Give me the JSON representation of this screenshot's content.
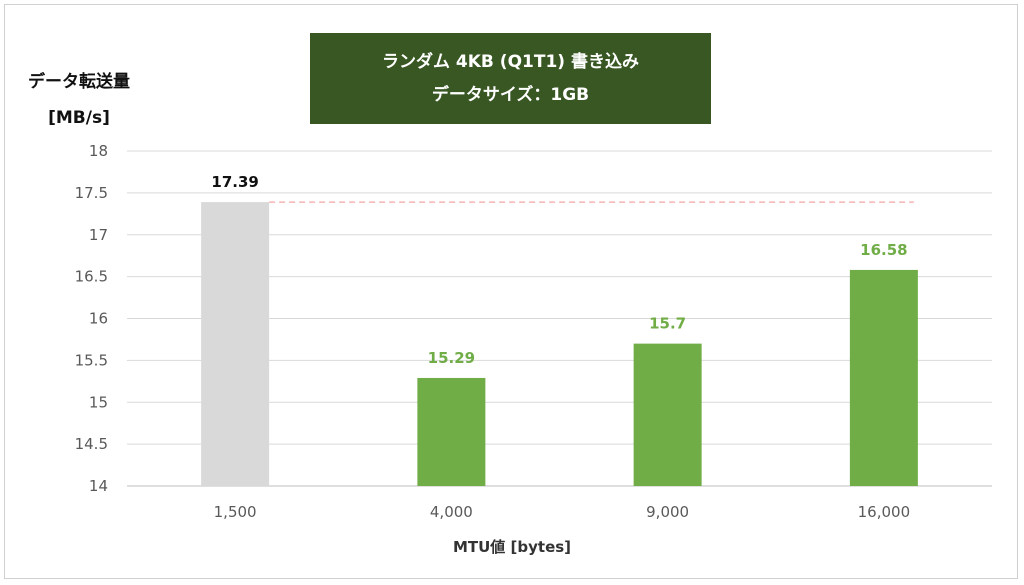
{
  "chart_data": {
    "type": "bar",
    "title_line1": "ランダム 4KB (Q1T1) 書き込み",
    "title_line2": "データサイズ：1GB",
    "ylabel_line1": "データ転送量",
    "ylabel_line2": "[MB/s]",
    "xlabel": "MTU値 [bytes]",
    "categories": [
      "1,500",
      "4,000",
      "9,000",
      "16,000"
    ],
    "values": [
      17.39,
      15.29,
      15.7,
      16.58
    ],
    "value_labels": [
      "17.39",
      "15.29",
      "15.7",
      "16.58"
    ],
    "ylim": [
      14,
      18
    ],
    "yticks": [
      14,
      14.5,
      15,
      15.5,
      16,
      16.5,
      17,
      17.5,
      18
    ],
    "ytick_labels": [
      "14",
      "14.5",
      "15",
      "15.5",
      "16",
      "16.5",
      "17",
      "17.5",
      "18"
    ],
    "grid": true,
    "reference_line": 17.39,
    "colors": {
      "baseline_bar": "#d9d9d9",
      "bar": "#70ad47",
      "baseline_label": "#111111",
      "bar_label": "#70ad47",
      "reference_line": "#f4a6a6",
      "title_bg": "#385723",
      "grid": "#d9d9d9"
    }
  }
}
